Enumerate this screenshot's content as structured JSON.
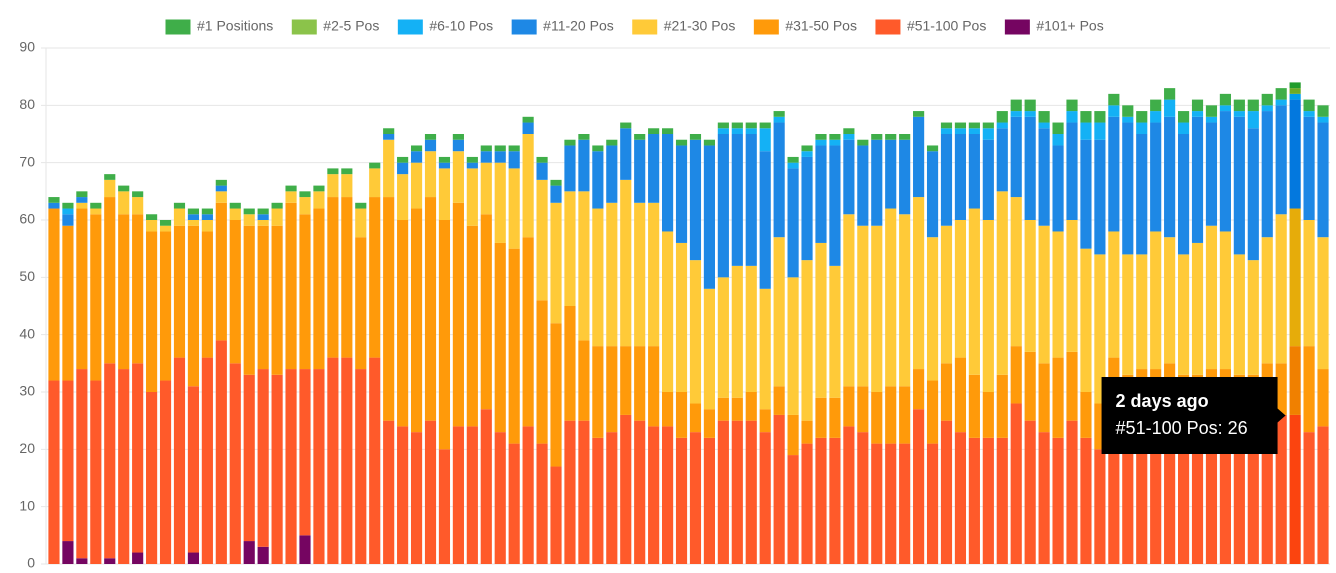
{
  "chart_data": {
    "type": "stacked-bar",
    "categories": [
      null,
      null,
      null,
      null,
      null,
      null,
      null,
      null,
      null,
      null,
      null,
      null,
      null,
      null,
      null,
      null,
      null,
      null,
      null,
      null,
      null,
      null,
      null,
      null,
      null,
      null,
      null,
      null,
      null,
      null,
      null,
      null,
      null,
      null,
      null,
      null,
      null,
      null,
      null,
      null,
      null,
      null,
      null,
      null,
      null,
      null,
      null,
      null,
      null,
      null,
      null,
      null,
      null,
      null,
      null,
      null,
      null,
      null,
      null,
      null,
      null,
      null,
      null,
      null,
      null,
      null,
      null,
      null,
      null,
      null,
      null,
      null,
      null,
      null,
      null,
      null,
      null,
      null,
      null,
      null,
      null,
      null,
      null,
      null,
      null,
      null,
      null,
      null,
      null,
      "2 days ago",
      null,
      null
    ],
    "series": [
      {
        "name": "#1 Positions",
        "color": "#3fae49",
        "values": [
          1,
          1,
          1,
          1,
          1,
          1,
          1,
          1,
          1,
          1,
          1,
          1,
          1,
          1,
          1,
          1,
          1,
          1,
          1,
          1,
          1,
          1,
          1,
          1,
          1,
          1,
          1,
          1,
          1,
          1,
          1,
          1,
          1,
          1,
          1,
          1,
          1,
          1,
          1,
          1,
          1,
          1,
          1,
          1,
          1,
          1,
          1,
          1,
          1,
          1,
          1,
          1,
          1,
          1,
          1,
          1,
          1,
          1,
          1,
          1,
          1,
          1,
          1,
          1,
          1,
          1,
          1,
          1,
          2,
          2,
          2,
          2,
          2,
          2,
          2,
          2,
          2,
          2,
          2,
          2,
          2,
          2,
          2,
          2,
          2,
          2,
          2,
          2,
          2,
          1,
          2,
          2
        ]
      },
      {
        "name": "#2-5 Pos",
        "color": "#8bc34a",
        "values": [
          0,
          0,
          0,
          0,
          0,
          0,
          0,
          0,
          0,
          0,
          0,
          0,
          0,
          0,
          0,
          0,
          0,
          0,
          0,
          0,
          0,
          0,
          0,
          0,
          0,
          0,
          0,
          0,
          0,
          0,
          0,
          0,
          0,
          0,
          0,
          0,
          0,
          0,
          0,
          0,
          0,
          0,
          0,
          0,
          0,
          0,
          0,
          0,
          0,
          0,
          0,
          0,
          0,
          0,
          0,
          0,
          0,
          0,
          0,
          0,
          0,
          0,
          0,
          0,
          0,
          0,
          0,
          0,
          0,
          0,
          0,
          0,
          0,
          0,
          0,
          0,
          0,
          0,
          0,
          0,
          0,
          0,
          0,
          0,
          0,
          0,
          0,
          0,
          0,
          1,
          0,
          0
        ]
      },
      {
        "name": "#6-10 Pos",
        "color": "#14b1f5",
        "values": [
          0,
          1,
          0,
          0,
          0,
          0,
          0,
          0,
          0,
          0,
          0,
          0,
          0,
          0,
          0,
          0,
          0,
          0,
          0,
          0,
          0,
          0,
          0,
          0,
          0,
          0,
          0,
          0,
          0,
          0,
          0,
          0,
          0,
          0,
          0,
          0,
          0,
          0,
          0,
          0,
          0,
          0,
          0,
          0,
          0,
          0,
          0,
          0,
          1,
          1,
          1,
          4,
          1,
          1,
          1,
          1,
          1,
          1,
          0,
          0,
          0,
          0,
          0,
          0,
          1,
          1,
          1,
          2,
          1,
          1,
          1,
          1,
          2,
          2,
          3,
          3,
          2,
          1,
          2,
          2,
          3,
          2,
          1,
          1,
          1,
          1,
          3,
          1,
          1,
          1,
          1,
          1
        ]
      },
      {
        "name": "#11-20 Pos",
        "color": "#1e88e5",
        "values": [
          1,
          2,
          1,
          0,
          0,
          0,
          0,
          0,
          0,
          0,
          1,
          1,
          1,
          0,
          0,
          1,
          0,
          0,
          0,
          0,
          0,
          0,
          0,
          0,
          1,
          2,
          2,
          2,
          1,
          2,
          1,
          2,
          2,
          3,
          2,
          3,
          3,
          8,
          9,
          10,
          10,
          9,
          11,
          12,
          17,
          17,
          21,
          25,
          25,
          23,
          23,
          24,
          20,
          19,
          18,
          17,
          21,
          13,
          14,
          15,
          12,
          13,
          14,
          15,
          16,
          15,
          13,
          14,
          11,
          14,
          18,
          17,
          15,
          17,
          19,
          20,
          20,
          23,
          21,
          19,
          21,
          21,
          22,
          18,
          21,
          24,
          23,
          22,
          19,
          19,
          18,
          20
        ]
      },
      {
        "name": "#21-30 Pos",
        "color": "#ffca38",
        "values": [
          0,
          0,
          1,
          1,
          3,
          4,
          3,
          2,
          1,
          3,
          1,
          2,
          2,
          2,
          2,
          1,
          3,
          2,
          3,
          3,
          4,
          4,
          5,
          5,
          10,
          8,
          8,
          8,
          9,
          9,
          10,
          9,
          14,
          14,
          18,
          21,
          21,
          20,
          26,
          24,
          25,
          29,
          25,
          25,
          28,
          26,
          25,
          21,
          21,
          23,
          22,
          21,
          26,
          24,
          28,
          27,
          23,
          30,
          28,
          29,
          31,
          30,
          30,
          25,
          24,
          24,
          29,
          30,
          32,
          26,
          23,
          24,
          22,
          23,
          25,
          26,
          22,
          21,
          20,
          24,
          22,
          21,
          23,
          25,
          24,
          21,
          20,
          22,
          26,
          24,
          22,
          23
        ]
      },
      {
        "name": "#31-50 Pos",
        "color": "#ff9a0a",
        "values": [
          30,
          27,
          28,
          29,
          29,
          27,
          26,
          28,
          26,
          23,
          28,
          22,
          24,
          25,
          26,
          25,
          26,
          29,
          27,
          28,
          28,
          28,
          23,
          28,
          39,
          36,
          39,
          39,
          40,
          39,
          35,
          34,
          33,
          34,
          33,
          25,
          25,
          20,
          14,
          16,
          15,
          12,
          13,
          14,
          6,
          8,
          5,
          5,
          4,
          4,
          5,
          4,
          5,
          7,
          4,
          7,
          7,
          7,
          8,
          9,
          10,
          10,
          7,
          11,
          10,
          13,
          11,
          8,
          11,
          10,
          12,
          12,
          14,
          12,
          8,
          8,
          14,
          11,
          12,
          12,
          13,
          11,
          11,
          12,
          12,
          11,
          11,
          13,
          9,
          12,
          15,
          10
        ]
      },
      {
        "name": "#51-100 Pos",
        "color": "#ff5a2a",
        "values": [
          32,
          28,
          33,
          32,
          34,
          34,
          33,
          30,
          32,
          36,
          29,
          36,
          39,
          35,
          29,
          31,
          33,
          34,
          29,
          34,
          36,
          36,
          34,
          36,
          25,
          24,
          23,
          25,
          20,
          24,
          24,
          27,
          23,
          21,
          24,
          21,
          17,
          25,
          25,
          22,
          23,
          26,
          25,
          24,
          24,
          22,
          23,
          22,
          25,
          25,
          25,
          23,
          26,
          19,
          21,
          22,
          22,
          24,
          23,
          21,
          21,
          21,
          27,
          21,
          25,
          23,
          22,
          22,
          22,
          28,
          25,
          23,
          22,
          25,
          22,
          20,
          22,
          22,
          22,
          22,
          22,
          22,
          22,
          22,
          22,
          22,
          22,
          22,
          26,
          26,
          23,
          24
        ]
      },
      {
        "name": "#101+ Pos",
        "color": "#750561",
        "values": [
          0,
          4,
          1,
          0,
          1,
          0,
          2,
          0,
          0,
          0,
          2,
          0,
          0,
          0,
          4,
          3,
          0,
          0,
          5,
          0,
          0,
          0,
          0,
          0,
          0,
          0,
          0,
          0,
          0,
          0,
          0,
          0,
          0,
          0,
          0,
          0,
          0,
          0,
          0,
          0,
          0,
          0,
          0,
          0,
          0,
          0,
          0,
          0,
          0,
          0,
          0,
          0,
          0,
          0,
          0,
          0,
          0,
          0,
          0,
          0,
          0,
          0,
          0,
          0,
          0,
          0,
          0,
          0,
          0,
          0,
          0,
          0,
          0,
          0,
          0,
          0,
          0,
          0,
          0,
          0,
          0,
          0,
          0,
          0,
          0,
          0,
          0,
          0,
          0,
          0,
          0,
          0
        ]
      }
    ],
    "ylim": [
      0,
      90
    ],
    "yticks": [
      0,
      10,
      20,
      30,
      40,
      50,
      60,
      70,
      80,
      90
    ],
    "grid": true,
    "stacked": true,
    "legend": "top",
    "tooltip": "#51-100 Pos: 26"
  }
}
